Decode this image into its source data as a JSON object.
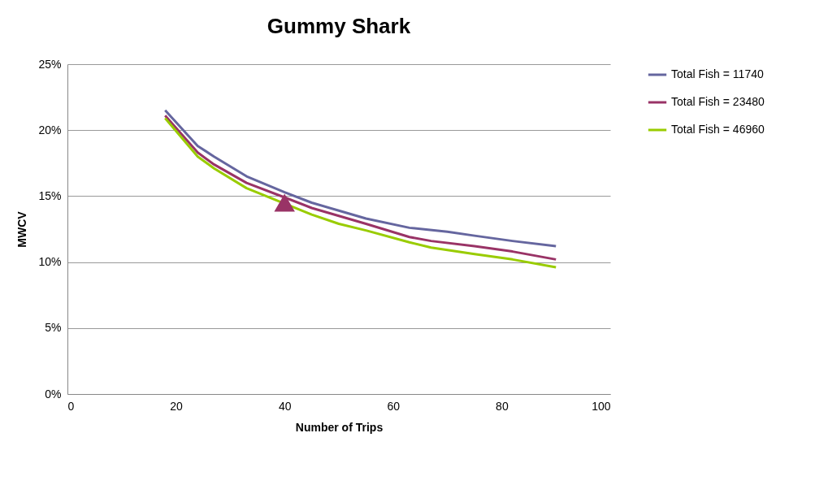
{
  "chart_data": {
    "type": "line",
    "title": "Gummy Shark",
    "xlabel": "Number of Trips",
    "ylabel": "MWCV",
    "xlim": [
      0,
      100
    ],
    "xticks": [
      0,
      20,
      40,
      60,
      80,
      100
    ],
    "ylim": [
      0,
      25
    ],
    "yticks": [
      {
        "value": 0,
        "label": "0%"
      },
      {
        "value": 5,
        "label": "5%"
      },
      {
        "value": 10,
        "label": "10%"
      },
      {
        "value": 15,
        "label": "15%"
      },
      {
        "value": 20,
        "label": "20%"
      },
      {
        "value": 25,
        "label": "25%"
      }
    ],
    "grid": "y",
    "legend": "right",
    "line_style": "solid",
    "marker": "none",
    "series": [
      {
        "name": "Total Fish = 11740",
        "color": "#65669f",
        "x": [
          18,
          24,
          27,
          33,
          40,
          45,
          50,
          55,
          63,
          70,
          75,
          82,
          90
        ],
        "values": [
          21.5,
          18.8,
          18.0,
          16.5,
          15.3,
          14.5,
          13.9,
          13.3,
          12.6,
          12.3,
          12.0,
          11.6,
          11.2
        ]
      },
      {
        "name": "Total Fish = 23480",
        "color": "#993366",
        "x": [
          18,
          24,
          27,
          33,
          40,
          45,
          50,
          55,
          63,
          67,
          75,
          82,
          90
        ],
        "values": [
          21.1,
          18.3,
          17.4,
          16.0,
          14.9,
          14.1,
          13.5,
          12.9,
          11.9,
          11.6,
          11.2,
          10.8,
          10.2
        ]
      },
      {
        "name": "Total Fish = 46960",
        "color": "#99cc00",
        "x": [
          18,
          24,
          27,
          33,
          45,
          50,
          55,
          63,
          67,
          75,
          82,
          90
        ],
        "values": [
          20.9,
          18.0,
          17.1,
          15.6,
          13.6,
          12.9,
          12.4,
          11.5,
          11.1,
          10.6,
          10.2,
          9.6
        ]
      },
      {
        "type": "scatter",
        "marker": "triangle",
        "color": "#993366",
        "x": [
          40
        ],
        "values": [
          14.5
        ]
      }
    ]
  }
}
